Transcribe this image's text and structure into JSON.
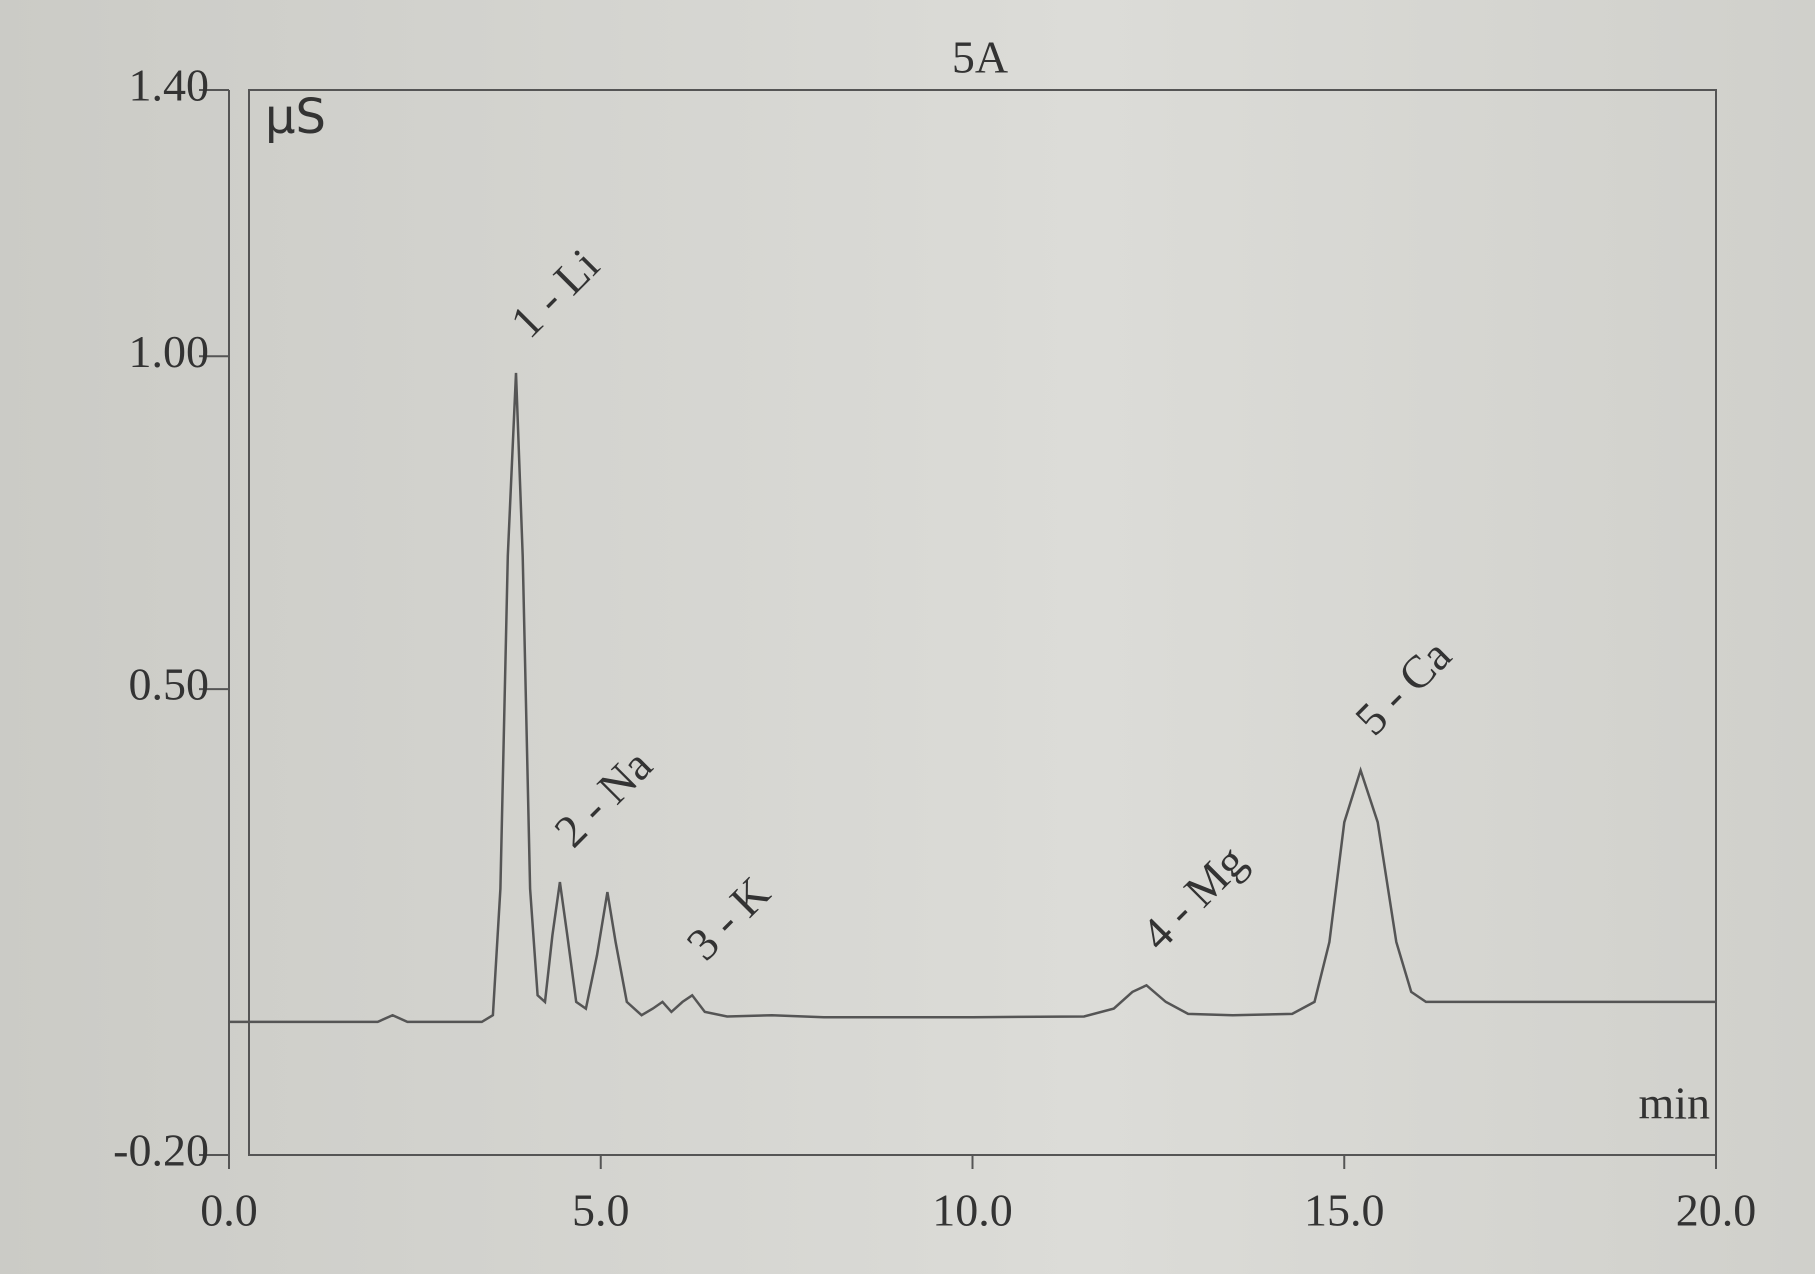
{
  "chart_data": {
    "type": "line",
    "title": "5A",
    "y_label": "μS",
    "x_label": "min",
    "xlim": [
      0,
      20
    ],
    "ylim": [
      -0.2,
      1.4
    ],
    "xticks": [
      {
        "value": 0,
        "label": "0.0"
      },
      {
        "value": 5,
        "label": "5.0"
      },
      {
        "value": 10,
        "label": "10.0"
      },
      {
        "value": 15,
        "label": "15.0"
      },
      {
        "value": 20,
        "label": "20.0"
      }
    ],
    "yticks": [
      {
        "value": -0.2,
        "label": "-0.20"
      },
      {
        "value": 0.5,
        "label": "0.50"
      },
      {
        "value": 1,
        "label": "1.00"
      },
      {
        "value": 1.4,
        "label": "1.40"
      }
    ],
    "series": [
      {
        "color": "#555555",
        "x": [
          0,
          2.0,
          2.2,
          2.4,
          3.4,
          3.55,
          3.65,
          3.75,
          3.86,
          3.95,
          4.05,
          4.15,
          4.25,
          4.35,
          4.45,
          4.55,
          4.67,
          4.8,
          4.95,
          5.09,
          5.2,
          5.35,
          5.55,
          5.7,
          5.83,
          5.95,
          6.1,
          6.23,
          6.4,
          6.7,
          7.3,
          8.0,
          10.0,
          11.5,
          11.9,
          12.15,
          12.34,
          12.6,
          12.9,
          13.5,
          14.3,
          14.6,
          14.8,
          15.0,
          15.22,
          15.45,
          15.7,
          15.9,
          16.1,
          20.0
        ],
        "values": [
          0.0,
          0.0,
          0.01,
          0.0,
          0.0,
          0.01,
          0.2,
          0.7,
          0.975,
          0.7,
          0.2,
          0.04,
          0.03,
          0.13,
          0.21,
          0.13,
          0.03,
          0.02,
          0.1,
          0.195,
          0.12,
          0.03,
          0.01,
          0.02,
          0.03,
          0.015,
          0.03,
          0.04,
          0.015,
          0.008,
          0.01,
          0.007,
          0.007,
          0.008,
          0.02,
          0.045,
          0.055,
          0.03,
          0.012,
          0.01,
          0.012,
          0.03,
          0.12,
          0.3,
          0.378,
          0.3,
          0.12,
          0.045,
          0.03,
          0.03
        ]
      }
    ],
    "annotations": [
      {
        "text": "1 - Li",
        "x": 3.86,
        "y": 0.975
      },
      {
        "text": "2 - Na",
        "x": 4.45,
        "y": 0.21
      },
      {
        "text": "3 - K",
        "x": 6.23,
        "y": 0.04
      },
      {
        "text": "4 - Mg",
        "x": 12.34,
        "y": 0.055
      },
      {
        "text": "5 - Ca",
        "x": 15.22,
        "y": 0.378
      }
    ]
  }
}
